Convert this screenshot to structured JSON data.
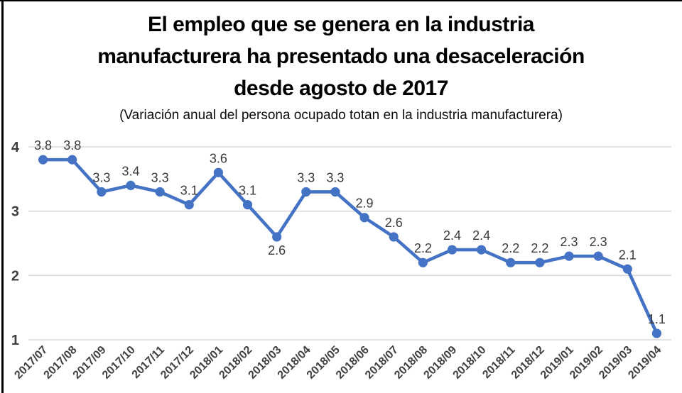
{
  "title": {
    "lines": [
      "El empleo que se genera en la industria",
      "manufacturera ha presentado una desaceleración",
      "desde agosto de 2017"
    ],
    "subtitle": "(Variación anual del persona ocupado totan en la industria manufacturera)"
  },
  "chart_data": {
    "type": "line",
    "title": "El empleo que se genera en la industria manufacturera ha presentado una desaceleración desde agosto de 2017",
    "subtitle": "(Variación anual del persona ocupado totan en la industria manufacturera)",
    "categories": [
      "2017/07",
      "2017/08",
      "2017/09",
      "2017/10",
      "2017/11",
      "2017/12",
      "2018/01",
      "2018/02",
      "2018/03",
      "2018/04",
      "2018/05",
      "2018/06",
      "2018/07",
      "2018/08",
      "2018/09",
      "2018/10",
      "2018/11",
      "2018/12",
      "2019/01",
      "2019/02",
      "2019/03",
      "2019/04"
    ],
    "values": [
      3.8,
      3.8,
      3.3,
      3.4,
      3.3,
      3.1,
      3.6,
      3.1,
      2.6,
      3.3,
      3.3,
      2.9,
      2.6,
      2.2,
      2.4,
      2.4,
      2.2,
      2.2,
      2.3,
      2.3,
      2.1,
      1.1
    ],
    "data_labels": [
      "3.8",
      "3.8",
      "3.3",
      "3.4",
      "3.3",
      "3.1",
      "3.6",
      "3.1",
      "2.6",
      "3.3",
      "3.3",
      "2.9",
      "2.6",
      "2.2",
      "2.4",
      "2.4",
      "2.2",
      "2.2",
      "2.3",
      "2.3",
      "2.1",
      "1.1"
    ],
    "label_below_indices": [
      8
    ],
    "xlabel": "",
    "ylabel": "",
    "y_ticks": [
      "1",
      "2",
      "3",
      "4"
    ],
    "ylim": [
      1,
      4
    ],
    "grid": true,
    "legend": "none",
    "line_color": "#4472C4",
    "marker_color": "#4472C4",
    "gridline_color": "#D8D8D8",
    "axis_label_color": "#404040",
    "data_label_color": "#3a3a3a"
  }
}
